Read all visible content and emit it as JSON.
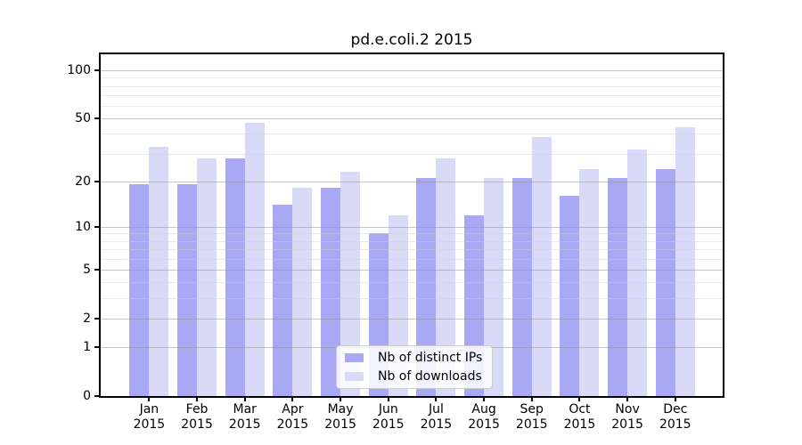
{
  "chart_data": {
    "type": "bar",
    "title": "pd.e.coli.2 2015",
    "year_label": "2015",
    "categories": [
      "Jan",
      "Feb",
      "Mar",
      "Apr",
      "May",
      "Jun",
      "Jul",
      "Aug",
      "Sep",
      "Oct",
      "Nov",
      "Dec"
    ],
    "series": [
      {
        "name": "Nb of distinct IPs",
        "color": "#a8a8f4",
        "values": [
          19,
          19,
          28,
          14,
          18,
          9,
          21,
          12,
          21,
          16,
          21,
          24
        ]
      },
      {
        "name": "Nb of downloads",
        "color": "#d9d9f8",
        "values": [
          33,
          28,
          47,
          18,
          23,
          12,
          28,
          21,
          38,
          24,
          32,
          44
        ]
      }
    ],
    "yscale": "log1p",
    "yticks": [
      0,
      1,
      2,
      5,
      10,
      20,
      50,
      100
    ],
    "yticks_minor": [
      3,
      4,
      6,
      7,
      8,
      9,
      30,
      40,
      60,
      70,
      80,
      90
    ],
    "ylim": [
      0,
      127
    ],
    "xlabel": "",
    "ylabel": "",
    "grid": true,
    "legend_position": "lower-center"
  },
  "style_colors": {
    "axis": "#000000",
    "text": "#000000",
    "grid_major": "#909090",
    "grid_minor": "#d0d0d0",
    "legend_border": "#cccccc",
    "background": "#ffffff"
  }
}
